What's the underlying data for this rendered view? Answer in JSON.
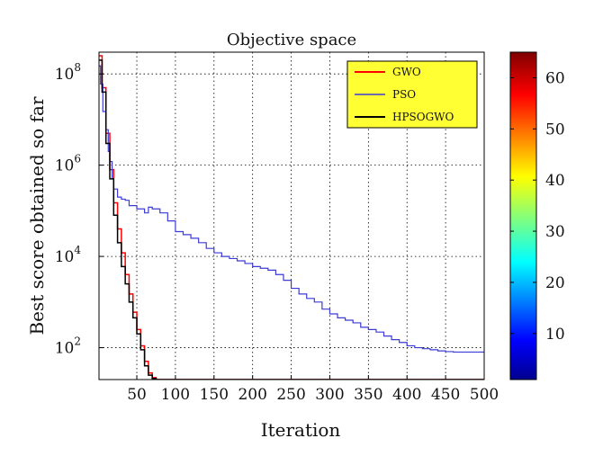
{
  "chart_data": {
    "type": "line",
    "title": "Objective space",
    "xlabel": "Iteration",
    "ylabel": "Best score obtained so far",
    "xlim": [
      1,
      500
    ],
    "ylim": [
      20,
      300000000
    ],
    "yscale": "log",
    "grid": true,
    "x_ticks": [
      50,
      100,
      150,
      200,
      250,
      300,
      350,
      400,
      450,
      500
    ],
    "x_tick_labels": [
      "50",
      "100",
      "150",
      "200",
      "250",
      "300",
      "350",
      "400",
      "450",
      "500"
    ],
    "y_tick_exponents": [
      2,
      4,
      6,
      8
    ],
    "legend_position": "top-right",
    "legend_background": "#ffff33",
    "series": [
      {
        "name": "GWO",
        "color": "#ff0000",
        "x": [
          1,
          5,
          10,
          15,
          20,
          25,
          30,
          35,
          40,
          45,
          50,
          55,
          60,
          65,
          70,
          75,
          80,
          500
        ],
        "y": [
          250000000,
          50000000,
          5000000,
          800000,
          150000,
          40000,
          12000,
          4000,
          1500,
          600,
          250,
          110,
          50,
          28,
          22,
          20,
          20,
          20
        ]
      },
      {
        "name": "PSO",
        "color": "#3b3bd6",
        "x": [
          1,
          3,
          6,
          10,
          13,
          15,
          18,
          20,
          25,
          30,
          35,
          40,
          50,
          60,
          65,
          70,
          80,
          90,
          100,
          110,
          120,
          130,
          140,
          150,
          160,
          170,
          180,
          190,
          200,
          210,
          220,
          230,
          240,
          250,
          260,
          270,
          280,
          290,
          300,
          310,
          320,
          330,
          340,
          350,
          360,
          370,
          380,
          390,
          400,
          410,
          420,
          430,
          440,
          450,
          460,
          470,
          480,
          490,
          500
        ],
        "y": [
          150000000,
          60000000,
          15000000,
          6000000,
          2000000,
          1200000,
          500000,
          300000,
          200000,
          180000,
          170000,
          130000,
          110000,
          90000,
          120000,
          110000,
          90000,
          60000,
          35000,
          30000,
          25000,
          20000,
          15000,
          12000,
          10000,
          9000,
          8000,
          7000,
          6000,
          5500,
          5000,
          4000,
          3000,
          2000,
          1500,
          1200,
          1000,
          700,
          550,
          450,
          400,
          350,
          280,
          250,
          220,
          180,
          150,
          130,
          110,
          100,
          95,
          90,
          85,
          82,
          80,
          80,
          80,
          80,
          80
        ]
      },
      {
        "name": "HPSOGWO",
        "color": "#000000",
        "x": [
          1,
          5,
          10,
          15,
          20,
          25,
          30,
          35,
          40,
          45,
          50,
          55,
          60,
          65,
          70,
          75,
          80,
          500
        ],
        "y": [
          200000000,
          40000000,
          3000000,
          500000,
          80000,
          20000,
          6000,
          2500,
          1000,
          450,
          200,
          90,
          40,
          25,
          21,
          20,
          20,
          20
        ]
      }
    ],
    "colorbar": {
      "range": [
        1,
        65
      ],
      "ticks": [
        10,
        20,
        30,
        40,
        50,
        60
      ],
      "tick_labels": [
        "10",
        "20",
        "30",
        "40",
        "50",
        "60"
      ],
      "colormap": "jet"
    }
  }
}
